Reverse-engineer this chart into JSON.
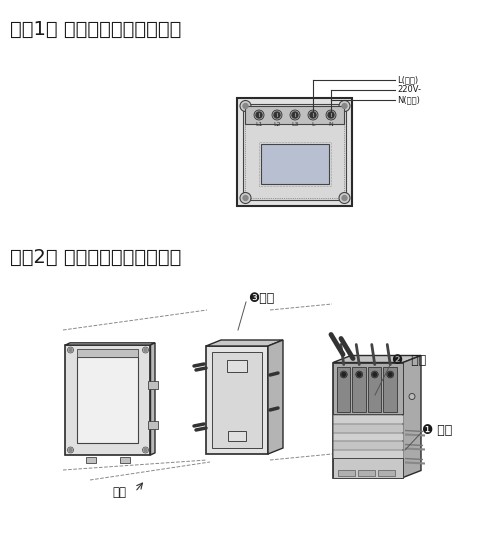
{
  "title1": "（图1） 联动灯光控制器接线图",
  "title2": "（图2） 联动灯光控制器安装图",
  "label_L": "L(火线)",
  "label_220": "220V-",
  "label_N": "N(零线)",
  "label_face": "面盖",
  "label_1": "❶ 导线",
  "label_2": "❷  螺丝",
  "label_3": "❸螺丝",
  "bg_color": "#ffffff",
  "text_color": "#1a1a1a",
  "line_color": "#555555",
  "title_fontsize": 14,
  "anno_fontsize": 8.5,
  "small_fontsize": 6
}
